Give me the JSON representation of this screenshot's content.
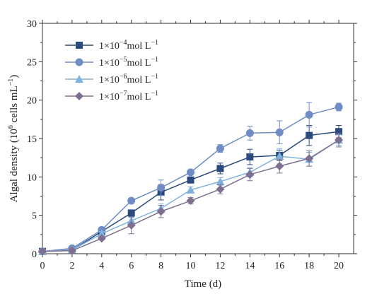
{
  "chart_data": {
    "type": "line",
    "title": "",
    "xlabel": "Time (d)",
    "ylabel": "Algal density (10^6 cells mL^-1)",
    "ylabel_parts": {
      "prefix": "Algal density (10",
      "exp1": "6",
      "middle": " cells mL",
      "exp2": "−1",
      "suffix": ")"
    },
    "xlim": [
      0,
      21
    ],
    "ylim": [
      0,
      30
    ],
    "xticks": [
      0,
      2,
      4,
      6,
      8,
      10,
      12,
      14,
      16,
      18,
      20
    ],
    "yticks": [
      0,
      5,
      10,
      15,
      20,
      25,
      30
    ],
    "grid": false,
    "legend_position": "top-left",
    "x": [
      0,
      2,
      4,
      6,
      8,
      10,
      12,
      14,
      16,
      18,
      20
    ],
    "series": [
      {
        "name": "1×10−4mol L−1",
        "label_parts": {
          "base": "1×10",
          "exp": "−4",
          "unit": "mol L",
          "unit_exp": "−1"
        },
        "marker": "square",
        "color": "#2b4a7c",
        "values": [
          0.3,
          0.5,
          2.9,
          5.3,
          8.0,
          9.6,
          11.1,
          12.6,
          12.8,
          15.4,
          15.9
        ],
        "errors": [
          0.1,
          0.1,
          0.3,
          0.4,
          1.0,
          0.3,
          0.7,
          1.0,
          0.7,
          1.3,
          0.8
        ]
      },
      {
        "name": "1×10−5mol L−1",
        "label_parts": {
          "base": "1×10",
          "exp": "−5",
          "unit": "mol L",
          "unit_exp": "−1"
        },
        "marker": "circle",
        "color": "#6f8cc4",
        "values": [
          0.3,
          0.7,
          3.1,
          6.9,
          8.6,
          10.6,
          13.7,
          15.7,
          15.8,
          18.1,
          19.1
        ],
        "errors": [
          0.1,
          0.1,
          0.3,
          0.3,
          1.0,
          0.3,
          0.5,
          0.9,
          1.5,
          1.6,
          0.5
        ]
      },
      {
        "name": "1×10−6mol L−1",
        "label_parts": {
          "base": "1×10",
          "exp": "−6",
          "unit": "mol L",
          "unit_exp": "−1"
        },
        "marker": "triangle",
        "color": "#7fb2dc",
        "values": [
          0.3,
          0.5,
          2.6,
          4.3,
          5.9,
          8.3,
          9.4,
          10.6,
          12.7,
          12.3,
          14.8
        ],
        "errors": [
          0.1,
          0.1,
          0.3,
          0.4,
          0.6,
          0.4,
          0.5,
          0.6,
          1.0,
          0.9,
          0.7
        ]
      },
      {
        "name": "1×10−7mol L−1",
        "label_parts": {
          "base": "1×10",
          "exp": "−7",
          "unit": "mol L",
          "unit_exp": "−1"
        },
        "marker": "diamond",
        "color": "#7e6e8f",
        "values": [
          0.3,
          0.4,
          2.0,
          3.7,
          5.5,
          6.9,
          8.4,
          10.3,
          11.4,
          12.4,
          14.8
        ],
        "errors": [
          0.1,
          0.1,
          0.2,
          1.1,
          0.8,
          0.4,
          0.6,
          0.8,
          0.9,
          1.0,
          0.9
        ]
      }
    ]
  }
}
